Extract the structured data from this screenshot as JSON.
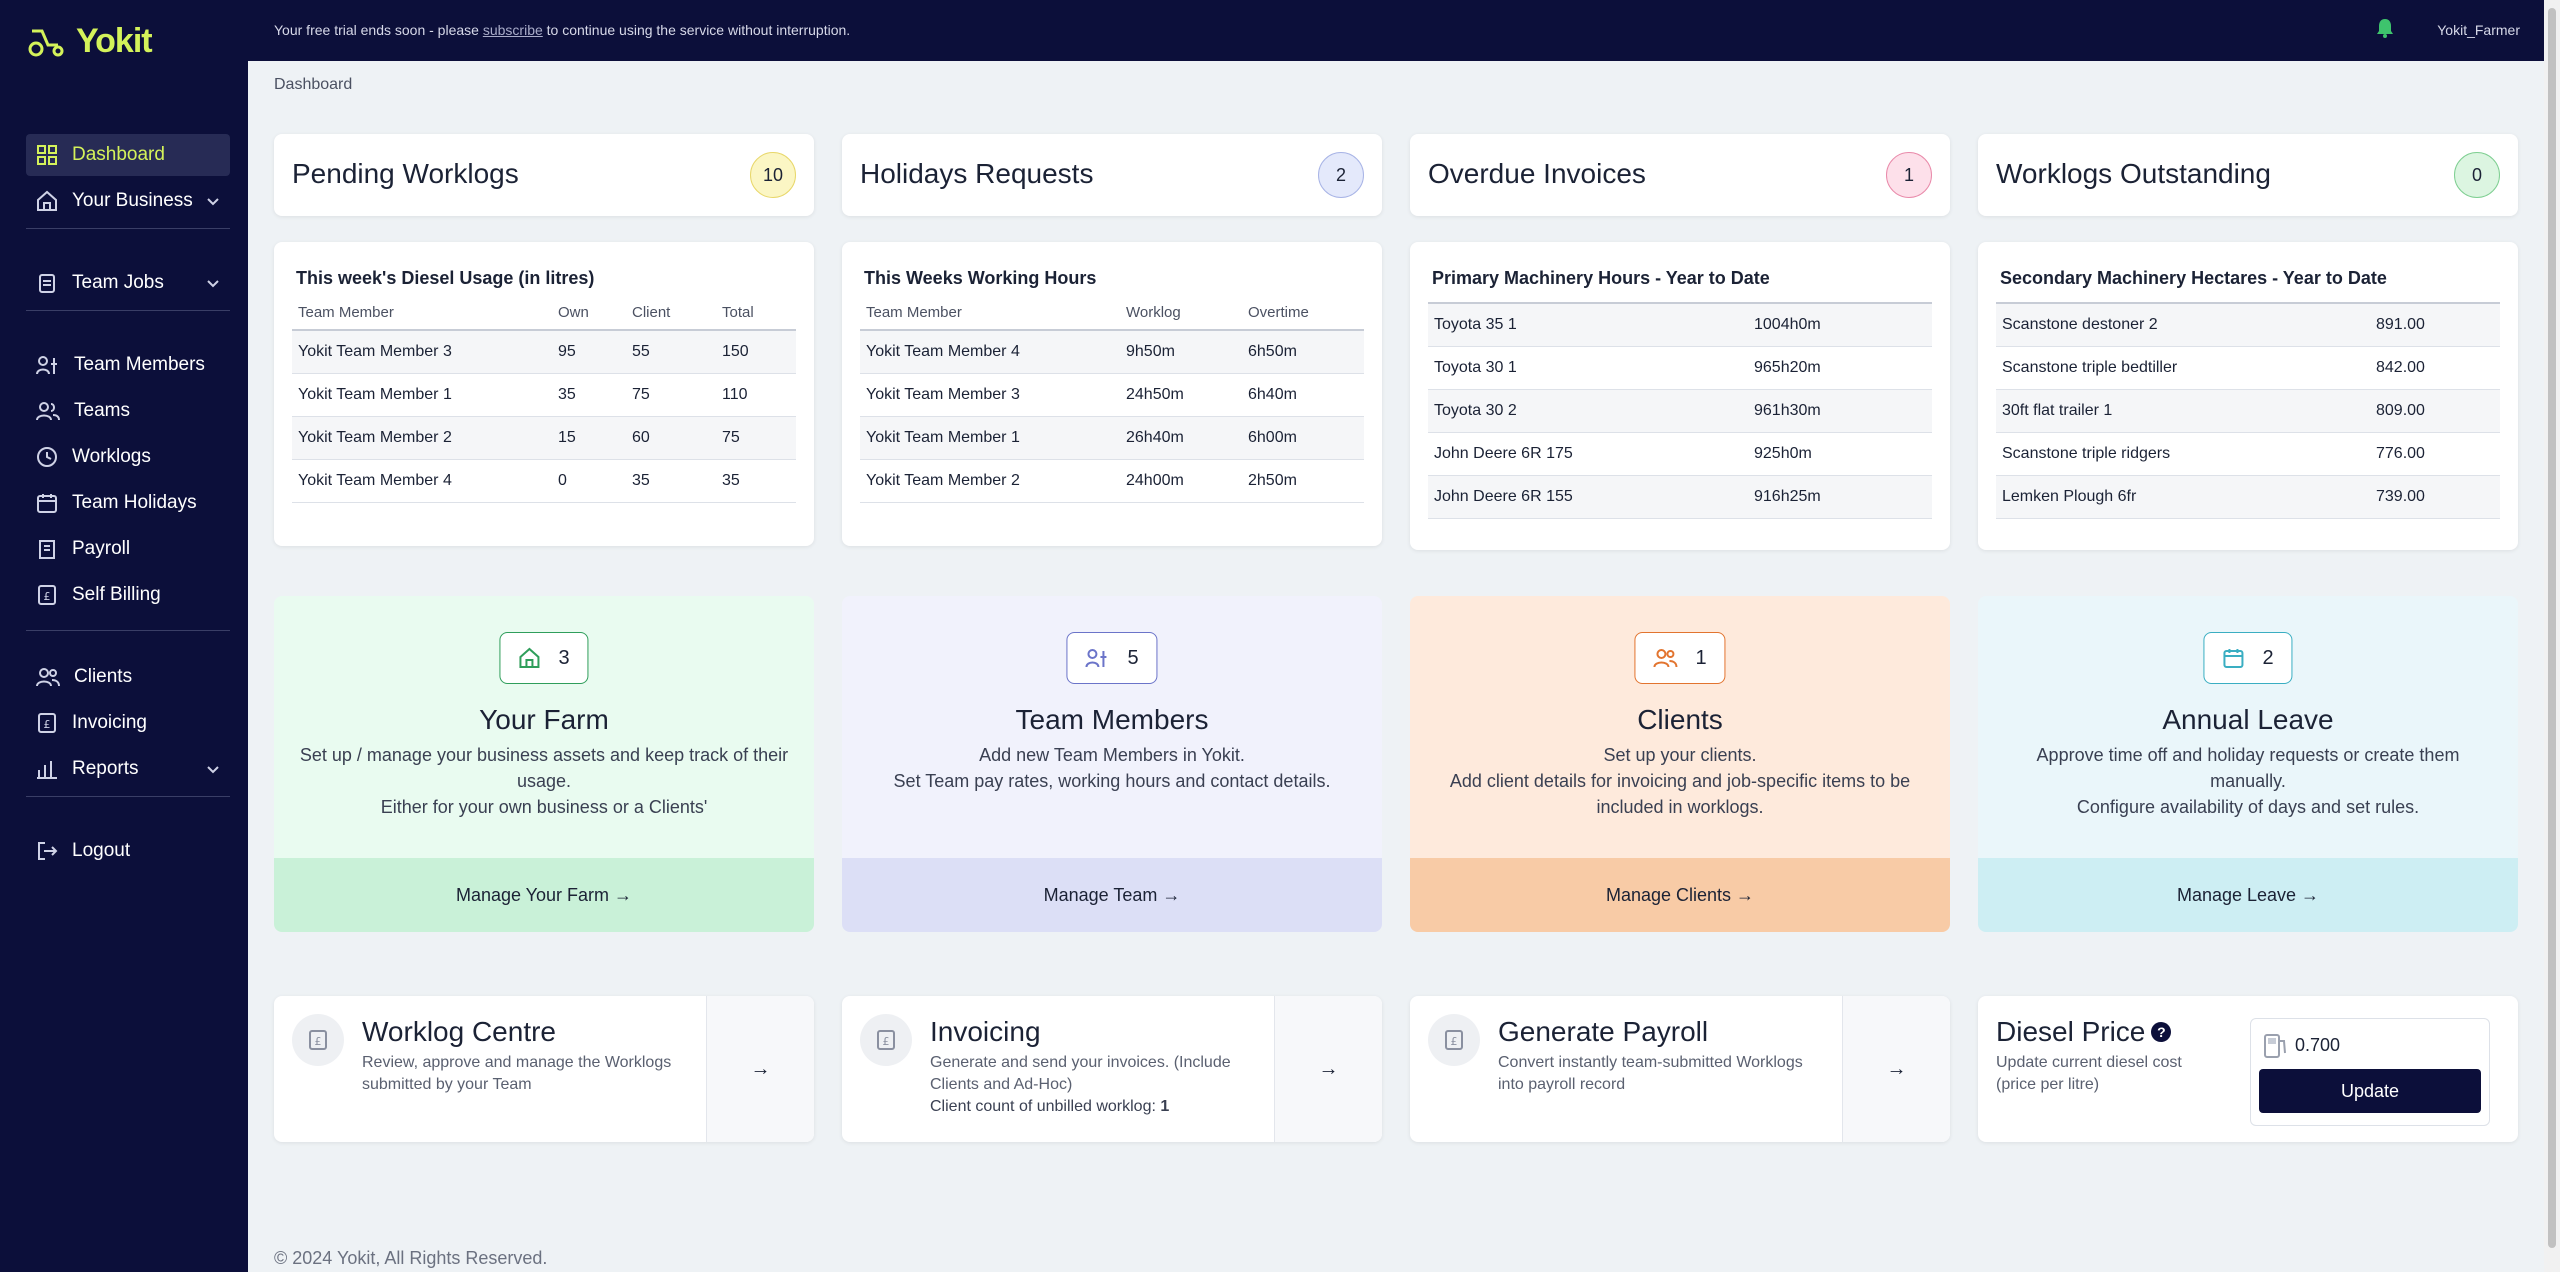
{
  "app": {
    "name": "Yokit"
  },
  "topbar": {
    "trial_prefix": "Your free trial ends soon - please ",
    "trial_link": "subscribe",
    "trial_suffix": " to continue using the service without interruption.",
    "username": "Yokit_Farmer",
    "bell_color": "#3ec46d"
  },
  "sidebar": {
    "items": [
      {
        "label": "Dashboard",
        "icon": "dashboard-icon",
        "active": true
      },
      {
        "label": "Your Business",
        "icon": "home-icon",
        "expandable": true
      },
      {
        "label": "Team Jobs",
        "icon": "clipboard-icon",
        "expandable": true
      },
      {
        "label": "Team Members",
        "icon": "team-members-icon"
      },
      {
        "label": "Teams",
        "icon": "teams-icon"
      },
      {
        "label": "Worklogs",
        "icon": "clock-icon"
      },
      {
        "label": "Team Holidays",
        "icon": "calendar-icon"
      },
      {
        "label": "Payroll",
        "icon": "payroll-icon"
      },
      {
        "label": "Self Billing",
        "icon": "pound-doc-icon"
      },
      {
        "label": "Clients",
        "icon": "clients-icon"
      },
      {
        "label": "Invoicing",
        "icon": "pound-doc-icon"
      },
      {
        "label": "Reports",
        "icon": "bar-chart-icon",
        "expandable": true
      },
      {
        "label": "Logout",
        "icon": "logout-icon"
      }
    ]
  },
  "breadcrumb": "Dashboard",
  "stats": [
    {
      "title": "Pending Worklogs",
      "count": "10",
      "bg": "#fbf6c4",
      "border": "#e8d76a"
    },
    {
      "title": "Holidays Requests",
      "count": "2",
      "bg": "#e4e9fb",
      "border": "#a8b4e6"
    },
    {
      "title": "Overdue Invoices",
      "count": "1",
      "bg": "#fde0ea",
      "border": "#e98aaa"
    },
    {
      "title": "Worklogs Outstanding",
      "count": "0",
      "bg": "#dcf5e1",
      "border": "#7fcf92"
    }
  ],
  "tables": {
    "diesel": {
      "title": "This week's Diesel Usage (in litres)",
      "headers": [
        "Team Member",
        "Own",
        "Client",
        "Total"
      ],
      "rows": [
        [
          "Yokit Team Member 3",
          "95",
          "55",
          "150"
        ],
        [
          "Yokit Team Member 1",
          "35",
          "75",
          "110"
        ],
        [
          "Yokit Team Member 2",
          "15",
          "60",
          "75"
        ],
        [
          "Yokit Team Member 4",
          "0",
          "35",
          "35"
        ]
      ]
    },
    "hours": {
      "title": "This Weeks Working Hours",
      "headers": [
        "Team Member",
        "Worklog",
        "Overtime"
      ],
      "rows": [
        [
          "Yokit Team Member 4",
          "9h50m",
          "6h50m"
        ],
        [
          "Yokit Team Member 3",
          "24h50m",
          "6h40m"
        ],
        [
          "Yokit Team Member 1",
          "26h40m",
          "6h00m"
        ],
        [
          "Yokit Team Member 2",
          "24h00m",
          "2h50m"
        ]
      ]
    },
    "primary": {
      "title": "Primary Machinery Hours - Year to Date",
      "rows": [
        [
          "Toyota 35 1",
          "1004h0m"
        ],
        [
          "Toyota 30 1",
          "965h20m"
        ],
        [
          "Toyota 30 2",
          "961h30m"
        ],
        [
          "John Deere 6R 175",
          "925h0m"
        ],
        [
          "John Deere 6R 155",
          "916h25m"
        ]
      ]
    },
    "secondary": {
      "title": "Secondary Machinery Hectares - Year to Date",
      "rows": [
        [
          "Scanstone destoner 2",
          "891.00"
        ],
        [
          "Scanstone triple bedtiller",
          "842.00"
        ],
        [
          "30ft flat trailer 1",
          "809.00"
        ],
        [
          "Scanstone triple ridgers",
          "776.00"
        ],
        [
          "Lemken Plough 6fr",
          "739.00"
        ]
      ]
    }
  },
  "features": [
    {
      "count": "3",
      "icon": "home-icon",
      "title": "Your Farm",
      "desc1": "Set up / manage your business assets and keep track of their usage.",
      "desc2": "Either for your own business or a Clients'",
      "button": "Manage Your Farm →",
      "bg": "#e9fbf0",
      "btn_bg": "#c9f1d8",
      "accent": "#2f9e5b"
    },
    {
      "count": "5",
      "icon": "team-members-icon",
      "title": "Team Members",
      "desc1": "Add new Team Members in Yokit.",
      "desc2": "Set Team pay rates, working hours and contact details.",
      "button": "Manage Team →",
      "bg": "#f1f2fc",
      "btn_bg": "#dcdff6",
      "accent": "#6b74c9"
    },
    {
      "count": "1",
      "icon": "clients-icon",
      "title": "Clients",
      "desc1": "Set up your clients.",
      "desc2": "Add client details for invoicing and job-specific items to be included in worklogs.",
      "button": "Manage Clients →",
      "bg": "#feeadc",
      "btn_bg": "#f8cba6",
      "accent": "#e2742f"
    },
    {
      "count": "2",
      "icon": "calendar-icon",
      "title": "Annual Leave",
      "desc1": "Approve time off and holiday requests or create them manually.",
      "desc2": "Configure availability of days and set rules.",
      "button": "Manage Leave →",
      "bg": "#eaf6fa",
      "btn_bg": "#cdeef3",
      "accent": "#3aaec2"
    }
  ],
  "actions": [
    {
      "title": "Worklog Centre",
      "desc": "Review, approve and manage the Worklogs submitted by your Team",
      "extra_label": "",
      "extra_value": "",
      "arrow": "→"
    },
    {
      "title": "Invoicing",
      "desc": "Generate and send your invoices. (Include Clients and Ad-Hoc)",
      "extra_label": "Client count of unbilled worklog: ",
      "extra_value": "1",
      "arrow": "→"
    },
    {
      "title": "Generate Payroll",
      "desc": "Convert instantly team-submitted Worklogs into payroll record",
      "extra_label": "",
      "extra_value": "",
      "arrow": "→"
    }
  ],
  "diesel_price": {
    "title": "Diesel Price",
    "desc": "Update current diesel cost (price per litre)",
    "value": "0.700",
    "button": "Update"
  },
  "footer": "© 2024 Yokit, All Rights Reserved."
}
